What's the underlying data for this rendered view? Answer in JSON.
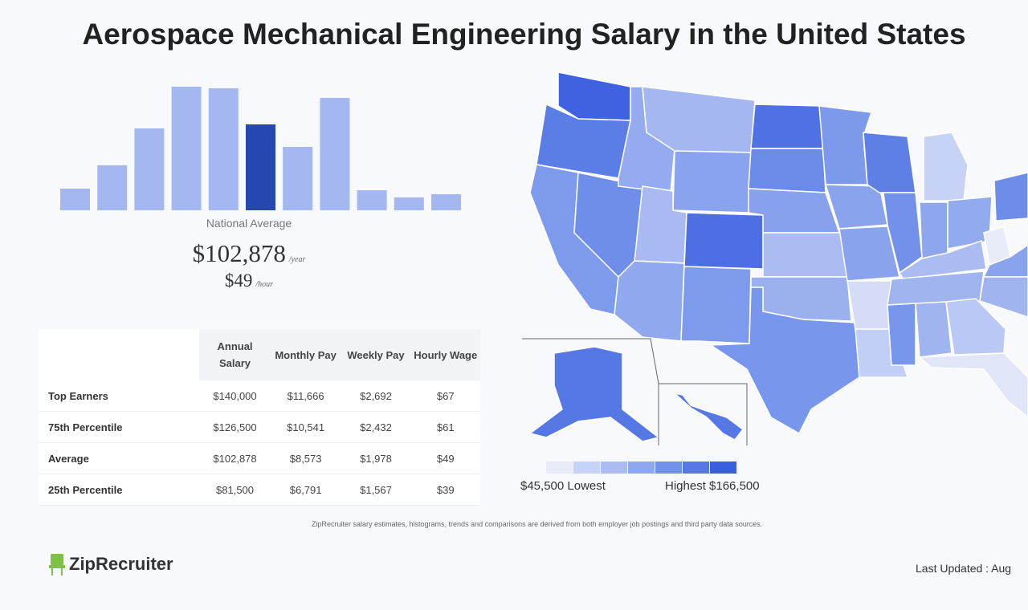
{
  "title": "Aerospace Mechanical Engineering Salary in the United States",
  "chart_data": [
    {
      "type": "bar",
      "title": "",
      "values": [
        27,
        56,
        102,
        154,
        152,
        107,
        79,
        140,
        25,
        16,
        20
      ],
      "highlight_index": 5,
      "colors": {
        "bar": "#a4b7f0",
        "highlight": "#2747b0"
      },
      "label": "National Average"
    },
    {
      "type": "table",
      "columns": [
        "Annual Salary",
        "Monthly Pay",
        "Weekly Pay",
        "Hourly Wage"
      ],
      "rows": [
        {
          "label": "Top Earners",
          "values": [
            "$140,000",
            "$11,666",
            "$2,692",
            "$67"
          ]
        },
        {
          "label": "75th Percentile",
          "values": [
            "$126,500",
            "$10,541",
            "$2,432",
            "$61"
          ]
        },
        {
          "label": "Average",
          "values": [
            "$102,878",
            "$8,573",
            "$1,978",
            "$49"
          ]
        },
        {
          "label": "25th Percentile",
          "values": [
            "$81,500",
            "$6,791",
            "$1,567",
            "$39"
          ]
        }
      ]
    },
    {
      "type": "heatmap",
      "subtype": "choropleth-us-states",
      "legend": {
        "low": "$45,500 Lowest",
        "high": "Highest $166,500",
        "colors": [
          "#e8ecf9",
          "#c7d3f6",
          "#aabcf1",
          "#8ea7ee",
          "#7190ea",
          "#5578e4",
          "#3a5fde"
        ]
      }
    }
  ],
  "national": {
    "label": "National Average",
    "annual": "$102,878",
    "annual_unit": "/year",
    "hourly": "$49",
    "hourly_unit": "/hour"
  },
  "disclaimer": "ZipRecruiter salary estimates, histograms, trends and comparisons are derived from both employer job postings and third party data sources.",
  "logo": "ZipRecruiter",
  "updated": "Last Updated : Aug"
}
